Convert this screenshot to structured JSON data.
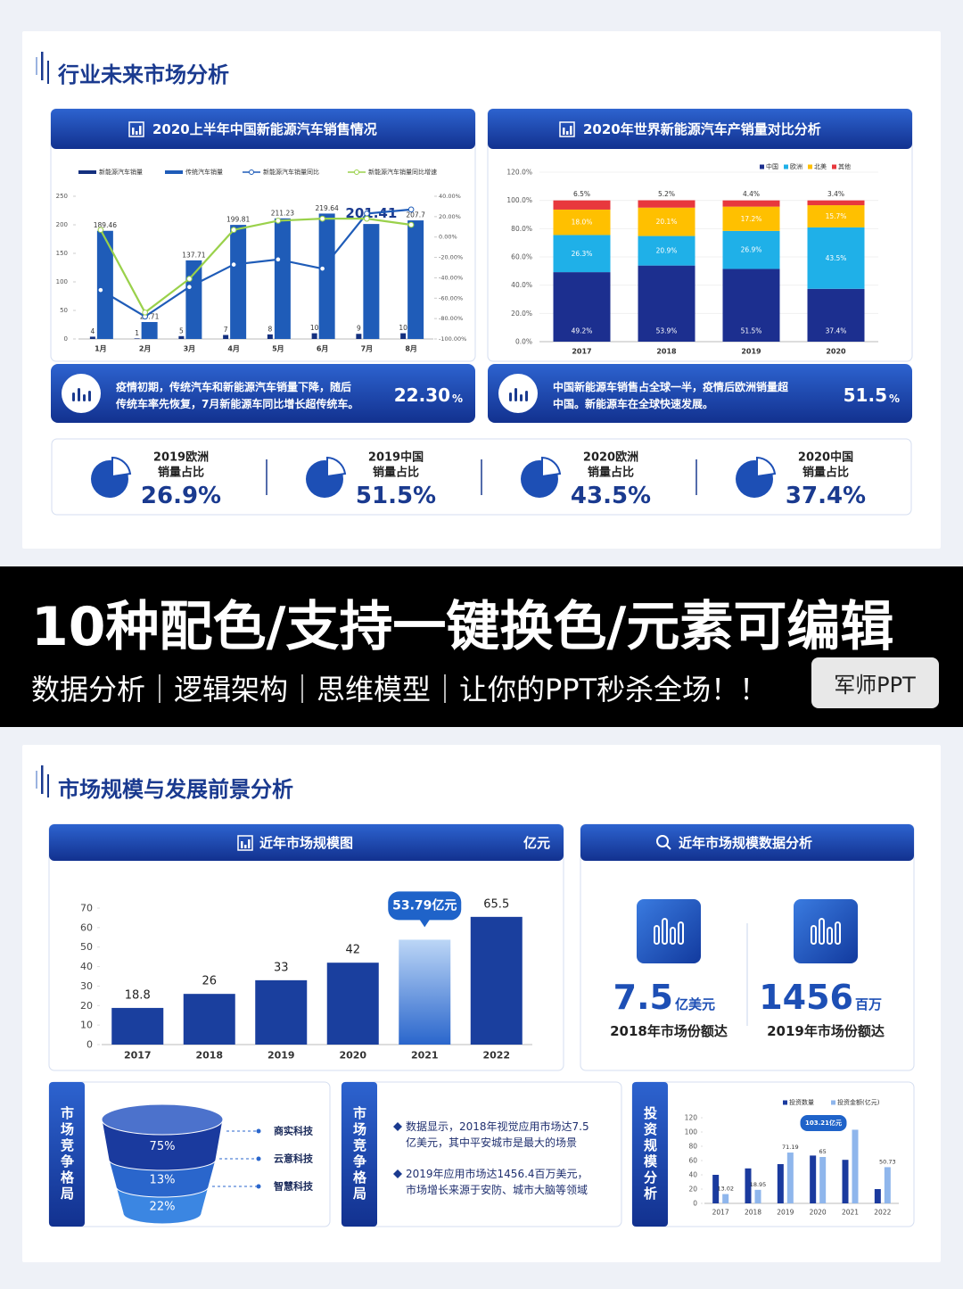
{
  "slide1": {
    "title": "行业未来市场分析",
    "panels": [
      {
        "header": "2020上半年中国新能源汽车销售情况",
        "summary": {
          "lines": [
            "疫情初期，传统汽车和新能源汽车销量下降，随后",
            "传统车率先恢复，7月新能源车同比增长超传统车。"
          ],
          "value": "22.30",
          "unit": "%"
        }
      },
      {
        "header": "2020年世界新能源汽车产销量对比分析",
        "summary": {
          "lines": [
            "中国新能源车销售占全球一半，疫情后欧洲销量超",
            "中国。新能源车在全球快速发展。"
          ],
          "value": "51.5",
          "unit": "%"
        }
      }
    ],
    "stats": [
      {
        "lines": [
          "2019欧洲",
          "销量占比"
        ],
        "value": "26.9%"
      },
      {
        "lines": [
          "2019中国",
          "销量占比"
        ],
        "value": "51.5%"
      },
      {
        "lines": [
          "2020欧洲",
          "销量占比"
        ],
        "value": "43.5%"
      },
      {
        "lines": [
          "2020中国",
          "销量占比"
        ],
        "value": "37.4%"
      }
    ]
  },
  "banner": {
    "headline": "10种配色/支持一键换色/元素可编辑",
    "tagline": "数据分析｜逻辑架构｜思维模型｜让你的PPT秒杀全场！！",
    "button": "军师PPT"
  },
  "slide2": {
    "title": "市场规模与发展前景分析",
    "size_panel": {
      "header": "近年市场规模图",
      "unit": "亿元"
    },
    "data_panel": {
      "header": "近年市场规模数据分析",
      "items": [
        {
          "value": "7.5",
          "unit": "亿美元",
          "caption": "2018年市场份额达"
        },
        {
          "value": "1456",
          "unit": "百万",
          "caption": "2019年市场份额达"
        }
      ]
    },
    "funnel": {
      "tab": "市场竞争格局",
      "layers": [
        "75%",
        "13%",
        "22%"
      ],
      "labels": [
        "商实科技",
        "云意科技",
        "智慧科技"
      ]
    },
    "notes": {
      "tab": "市场竞争格局",
      "bullets": [
        [
          "数据显示，2018年视觉应用市场达7.5",
          "亿美元，其中平安城市是最大的场景"
        ],
        [
          "2019年应用市场达1456.4百万美元，",
          "市场增长来源于安防、城市大脑等领域"
        ]
      ]
    },
    "invest_tab": "投资规模分析"
  },
  "chart_data": [
    {
      "type": "bar-line",
      "categories": [
        "1月",
        "2月",
        "3月",
        "4月",
        "5月",
        "6月",
        "7月",
        "8月"
      ],
      "series": [
        {
          "name": "新能源汽车销量",
          "type": "bar",
          "color": "#14307f",
          "values": [
            4,
            1,
            5,
            7,
            8,
            10,
            9,
            10
          ]
        },
        {
          "name": "传统汽车销量",
          "type": "bar",
          "color": "#1f5cb8",
          "values": [
            189.46,
            29.71,
            137.71,
            199.81,
            211.23,
            219.64,
            201.41,
            207.7
          ]
        },
        {
          "name": "新能源汽车销量同比",
          "type": "line",
          "axis": "y2",
          "color": "#1f5cb8",
          "values": [
            -52,
            -78,
            -49,
            -27,
            -22,
            -31,
            23,
            27
          ]
        },
        {
          "name": "新能源汽车销量同比增速",
          "type": "line",
          "axis": "y2",
          "color": "#9ad14b",
          "values": [
            7,
            -74,
            -41,
            7,
            16,
            18,
            18,
            12
          ]
        }
      ],
      "ylim": [
        0,
        250
      ],
      "yticks": [
        0,
        50,
        100,
        150,
        200,
        250
      ],
      "y2lim": [
        -100,
        40
      ],
      "y2ticks": [
        {
          "value": 40,
          "label": "40.00%"
        },
        {
          "value": 20,
          "label": "20.00%"
        },
        {
          "value": 0,
          "label": "0.00%"
        },
        {
          "value": -20,
          "label": "-20.00%"
        },
        {
          "value": -40,
          "label": "-40.00%"
        },
        {
          "value": -60,
          "label": "-60.00%"
        },
        {
          "value": -80,
          "label": "-80.00%"
        },
        {
          "value": -100,
          "label": "-100.00%"
        }
      ]
    },
    {
      "type": "stacked-bar",
      "categories": [
        "2017",
        "2018",
        "2019",
        "2020"
      ],
      "series": [
        {
          "name": "中国",
          "color": "#1c2f8f",
          "values": [
            49.2,
            53.9,
            51.5,
            37.4
          ],
          "value_labels": [
            "49.2%",
            "53.9%",
            "51.5%",
            "37.4%"
          ]
        },
        {
          "name": "欧洲",
          "color": "#1fb0e8",
          "values": [
            26.3,
            20.9,
            26.9,
            43.5
          ],
          "value_labels": [
            "26.3%",
            "20.9%",
            "26.9%",
            "43.5%"
          ]
        },
        {
          "name": "北美",
          "color": "#ffc000",
          "values": [
            18.0,
            20.1,
            17.2,
            15.7
          ],
          "value_labels": [
            "18.0%",
            "20.1%",
            "17.2%",
            "15.7%"
          ]
        },
        {
          "name": "其他",
          "color": "#e8383d",
          "values": [
            6.5,
            5.2,
            4.4,
            3.4
          ],
          "value_labels": [
            "6.5%",
            "5.2%",
            "4.4%",
            "3.4%"
          ]
        }
      ],
      "ylim": [
        0,
        120
      ],
      "yticks": [
        {
          "value": 0,
          "label": "0.0%"
        },
        {
          "value": 20,
          "label": "20.0%"
        },
        {
          "value": 40,
          "label": "40.0%"
        },
        {
          "value": 60,
          "label": "60.0%"
        },
        {
          "value": 80,
          "label": "80.0%"
        },
        {
          "value": 100,
          "label": "100.0%"
        },
        {
          "value": 120,
          "label": "120.0%"
        }
      ],
      "legend": "top-right"
    },
    {
      "type": "bar",
      "categories": [
        "2017",
        "2018",
        "2019",
        "2020",
        "2021",
        "2022"
      ],
      "values": [
        18.8,
        26,
        33,
        42,
        53.79,
        65.5
      ],
      "value_labels": [
        "18.8",
        "26",
        "33",
        "42",
        "53.79亿元",
        "65.5"
      ],
      "color": "#1a3f9e",
      "ylim": [
        0,
        70
      ],
      "yticks": [
        0,
        10,
        20,
        30,
        40,
        50,
        60,
        70
      ]
    },
    {
      "type": "grouped-bar",
      "categories": [
        "2017",
        "2018",
        "2019",
        "2020",
        "2021",
        "2022"
      ],
      "series": [
        {
          "name": "投资数量",
          "color": "#1a3a9e",
          "values": [
            40,
            49,
            55,
            67,
            61,
            20
          ]
        },
        {
          "name": "投资金额(亿元)",
          "color": "#8fb6ec",
          "values": [
            13.02,
            18.95,
            71.19,
            65,
            103.21,
            50.73
          ],
          "value_labels": [
            "13.02",
            "18.95",
            "71.19",
            "65",
            "103.21亿元",
            "50.73"
          ]
        }
      ],
      "ylim": [
        0,
        120
      ],
      "yticks": [
        0,
        20,
        40,
        60,
        80,
        100,
        120
      ],
      "legend": "top-right"
    }
  ]
}
